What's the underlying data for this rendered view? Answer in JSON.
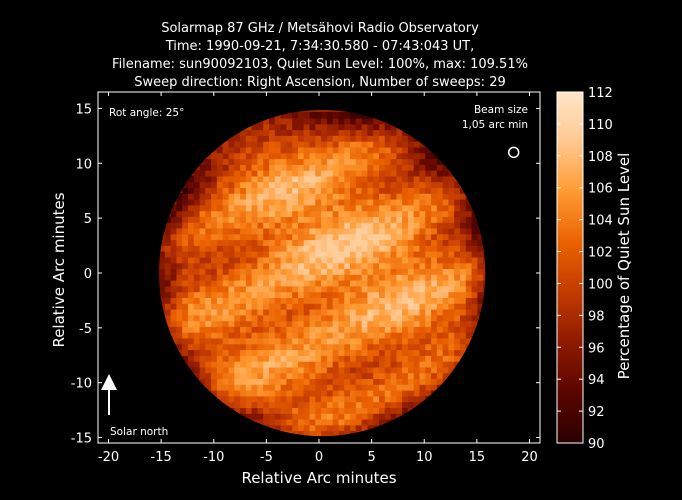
{
  "title": {
    "line1": "Solarmap 87 GHz / Metsähovi Radio Observatory",
    "line2": "Time: 1990-09-21,  7:34:30.580 - 07:43:043 UT,",
    "line3": "Filename: sun90092103, Quiet Sun Level: 100%, max: 109.51%",
    "line4": "Sweep direction: Right Ascension, Number of sweeps: 29"
  },
  "annotations": {
    "rot_angle": "Rot angle: 25°",
    "beam_size_line1": "Beam size",
    "beam_size_line2": "1,05 arc min",
    "solar_north": "Solar north"
  },
  "colors": {
    "background": "#000000",
    "colormap": [
      "#2a0000",
      "#5a0500",
      "#8e1a00",
      "#c23a00",
      "#ea6200",
      "#ff9a32",
      "#ffc890",
      "#ffe6c8"
    ]
  },
  "chart_data": {
    "type": "heatmap",
    "xlabel": "Relative Arc minutes",
    "ylabel": "Relative Arc minutes",
    "xlim": [
      -21,
      21
    ],
    "ylim": [
      -15.5,
      16.5
    ],
    "xticks": [
      -20,
      -15,
      -10,
      -5,
      0,
      5,
      10,
      15,
      20
    ],
    "yticks": [
      -15,
      -10,
      -5,
      0,
      5,
      10,
      15
    ],
    "xtick_labels": [
      "-20",
      "-15",
      "-10",
      "-5",
      "0",
      "5",
      "10",
      "15",
      "20"
    ],
    "ytick_labels": [
      "-15",
      "-10",
      "-5",
      "0",
      "5",
      "10",
      "15"
    ],
    "colorbar": {
      "label": "Percentage of Quiet Sun Level",
      "range": [
        90,
        112
      ],
      "ticks": [
        90,
        92,
        94,
        96,
        98,
        100,
        102,
        104,
        106,
        108,
        110,
        112
      ],
      "tick_labels": [
        "90",
        "92",
        "94",
        "96",
        "98",
        "100",
        "102",
        "104",
        "106",
        "108",
        "110",
        "112"
      ]
    },
    "solar_disk": {
      "center": [
        0.3,
        0.0
      ],
      "radius_arcmin": 15.5,
      "max_value": 109.51,
      "limb_value": 97
    },
    "beam_center": [
      18.5,
      11
    ]
  }
}
